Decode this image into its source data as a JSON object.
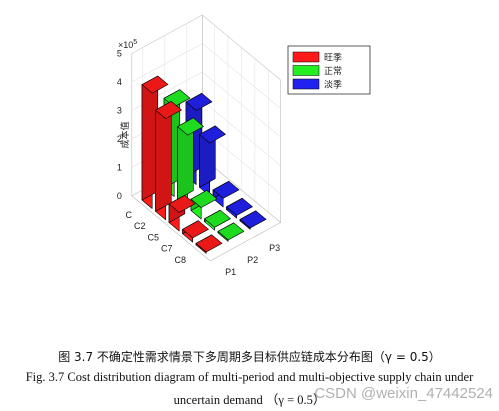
{
  "chart_data": {
    "type": "bar3d",
    "y_axis": {
      "label": "成本值",
      "exponent": "×10",
      "exponent_power": "5",
      "ticks": [
        "0",
        "1",
        "2",
        "3",
        "4",
        "5"
      ],
      "range": [
        0,
        5
      ]
    },
    "categories": [
      "C",
      "C2",
      "C5",
      "C7",
      "C8"
    ],
    "periods": [
      "P1",
      "P2",
      "P3"
    ],
    "series": [
      {
        "name": "旺季",
        "period": "P1",
        "color": "#ff1a1a",
        "values": [
          4.05,
          3.55,
          0.65,
          0.15,
          0.05
        ]
      },
      {
        "name": "正常",
        "period": "P2",
        "color": "#22ee22",
        "values": [
          3.15,
          2.55,
          0.4,
          0.1,
          0.05
        ]
      },
      {
        "name": "淡季",
        "period": "P3",
        "color": "#2222ee",
        "values": [
          2.6,
          1.85,
          0.3,
          0.1,
          0.05
        ]
      }
    ],
    "legend_position": "top-right",
    "grid": true
  },
  "caption": {
    "chinese": "图 3.7 不确定性需求情景下多周期多目标供应链成本分布图（γ = 0.5）",
    "english_line1": "Fig. 3.7 Cost distribution diagram of multi-period and multi-objective supply chain under",
    "english_line2": "uncertain demand   （γ = 0.5）"
  },
  "watermark": "CSDN @weixin_47442524"
}
